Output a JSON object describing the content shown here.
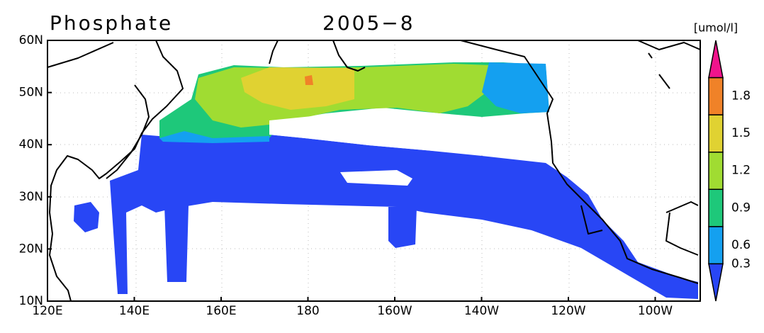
{
  "header": {
    "title": "Phosphate",
    "period": "2005−8"
  },
  "axes": {
    "x_labels": [
      "120E",
      "140E",
      "160E",
      "180",
      "160W",
      "140W",
      "120W",
      "100W"
    ],
    "y_labels": [
      "60N",
      "50N",
      "40N",
      "30N",
      "20N",
      "10N"
    ]
  },
  "colorbar": {
    "unit": "[umol/l]",
    "labels": [
      "1.8",
      "1.5",
      "1.2",
      "0.9",
      "0.6",
      "0.3"
    ],
    "colors": [
      "#f0148c",
      "#f08228",
      "#e0d232",
      "#a0dc32",
      "#1ec87a",
      "#14a0f0",
      "#2846f5"
    ]
  }
}
